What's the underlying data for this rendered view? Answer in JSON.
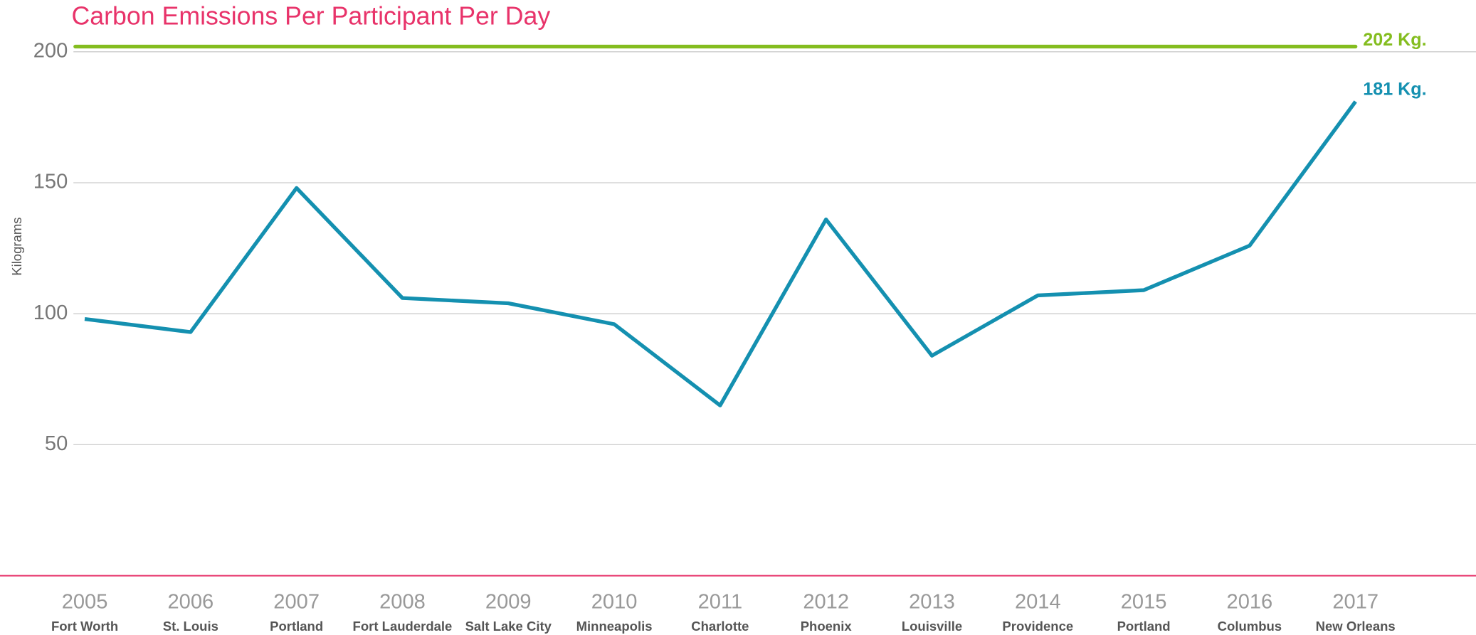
{
  "chart_data": {
    "type": "line",
    "title": "Carbon Emissions Per Participant Per Day",
    "y_label": "Kilograms",
    "categories": [
      "2005",
      "2006",
      "2007",
      "2008",
      "2009",
      "2010",
      "2011",
      "2012",
      "2013",
      "2014",
      "2015",
      "2016",
      "2017"
    ],
    "sublabels": [
      "Fort Worth",
      "St. Louis",
      "Portland",
      "Fort Lauderdale",
      "Salt Lake City",
      "Minneapolis",
      "Charlotte",
      "Phoenix",
      "Louisville",
      "Providence",
      "Portland",
      "Columbus",
      "New Orleans"
    ],
    "series": [
      {
        "color": "#1490b0",
        "values": [
          98,
          93,
          148,
          106,
          104,
          96,
          65,
          136,
          84,
          107,
          109,
          126,
          181
        ],
        "value_labels": [
          null,
          null,
          null,
          null,
          null,
          null,
          null,
          null,
          null,
          null,
          null,
          null,
          "181 Kg."
        ]
      }
    ],
    "reference_line": {
      "value": 202,
      "label": "202 Kg.",
      "color": "#84bd1f"
    },
    "ylim": [
      0,
      200
    ],
    "yticks": [
      50,
      100,
      150,
      200
    ],
    "grid": true
  }
}
